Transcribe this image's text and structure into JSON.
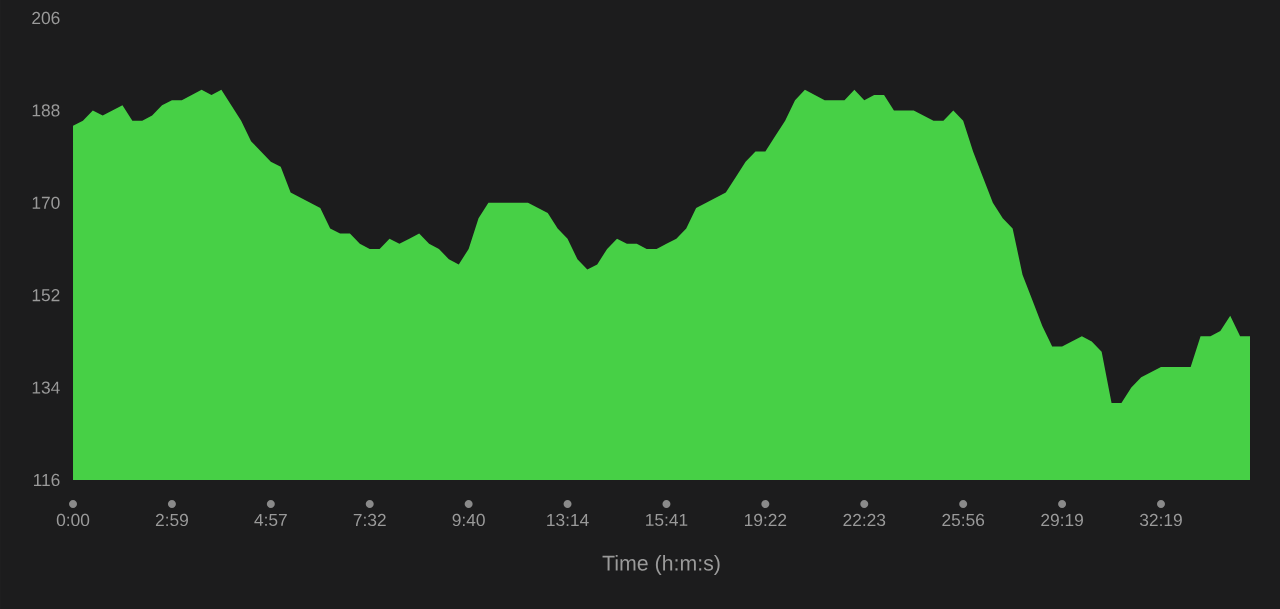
{
  "chart_data": {
    "type": "area",
    "xlabel": "Time (h:m:s)",
    "categories": [
      "0:00",
      null,
      null,
      null,
      null,
      null,
      null,
      null,
      null,
      null,
      "2:59",
      null,
      null,
      null,
      null,
      null,
      null,
      null,
      null,
      null,
      "4:57",
      null,
      null,
      null,
      null,
      null,
      null,
      null,
      null,
      null,
      "7:32",
      null,
      null,
      null,
      null,
      null,
      null,
      null,
      null,
      null,
      "9:40",
      null,
      null,
      null,
      null,
      null,
      null,
      null,
      null,
      null,
      "13:14",
      null,
      null,
      null,
      null,
      null,
      null,
      null,
      null,
      null,
      "15:41",
      null,
      null,
      null,
      null,
      null,
      null,
      null,
      null,
      null,
      "19:22",
      null,
      null,
      null,
      null,
      null,
      null,
      null,
      null,
      null,
      "22:23",
      null,
      null,
      null,
      null,
      null,
      null,
      null,
      null,
      null,
      "25:56",
      null,
      null,
      null,
      null,
      null,
      null,
      null,
      null,
      null,
      "29:19",
      null,
      null,
      null,
      null,
      null,
      null,
      null,
      null,
      null,
      "32:19",
      null,
      null,
      null,
      null,
      null,
      null,
      null,
      null,
      null
    ],
    "series": [
      {
        "color": "#47d046",
        "values": [
          185,
          186,
          188,
          187,
          188,
          189,
          186,
          186,
          187,
          189,
          190,
          190,
          191,
          192,
          191,
          192,
          189,
          186,
          182,
          180,
          178,
          177,
          172,
          171,
          170,
          169,
          165,
          164,
          164,
          162,
          161,
          161,
          163,
          162,
          163,
          164,
          162,
          161,
          159,
          158,
          161,
          167,
          170,
          170,
          170,
          170,
          170,
          169,
          168,
          165,
          163,
          159,
          157,
          158,
          161,
          163,
          162,
          162,
          161,
          161,
          162,
          163,
          165,
          169,
          170,
          171,
          172,
          175,
          178,
          180,
          180,
          183,
          186,
          190,
          192,
          191,
          190,
          190,
          190,
          192,
          190,
          191,
          191,
          188,
          188,
          188,
          187,
          186,
          186,
          188,
          186,
          180,
          175,
          170,
          167,
          165,
          156,
          151,
          146,
          142,
          142,
          143,
          144,
          143,
          141,
          131,
          131,
          134,
          136,
          137,
          138,
          138,
          138,
          138,
          144,
          144,
          145,
          148,
          144,
          144
        ]
      }
    ],
    "ylim": [
      116,
      206
    ],
    "yticks": [
      116,
      134,
      152,
      170,
      188,
      206
    ]
  }
}
